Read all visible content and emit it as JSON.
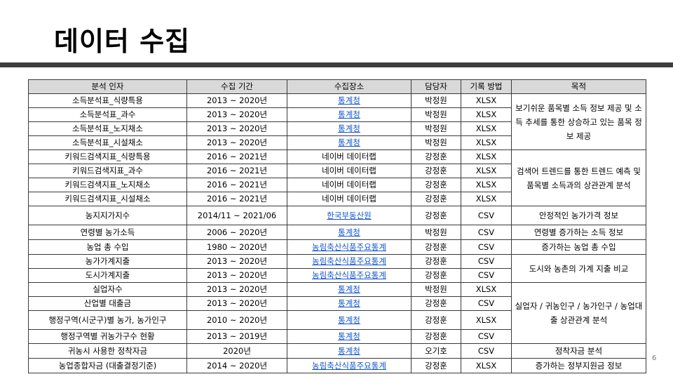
{
  "title": "데이터 수집",
  "page_number": "6",
  "columns": [
    "분석 인자",
    "수집 기간",
    "수집장소",
    "담당자",
    "기록 방법",
    "목적"
  ],
  "rows": [
    {
      "factor": "소득분석표_식량특용",
      "period": "2013 ~ 2020년",
      "source": "통계청",
      "source_link": true,
      "owner": "박정원",
      "format": "XLSX"
    },
    {
      "factor": "소득분석표_과수",
      "period": "2013 ~ 2020년",
      "source": "통계청",
      "source_link": true,
      "owner": "박정원",
      "format": "XLSX"
    },
    {
      "factor": "소득분석표_노지채소",
      "period": "2013 ~ 2020년",
      "source": "통계청",
      "source_link": true,
      "owner": "박정원",
      "format": "XLSX"
    },
    {
      "factor": "소득분석표_시설채소",
      "period": "2013 ~ 2020년",
      "source": "통계청",
      "source_link": true,
      "owner": "박정원",
      "format": "XLSX"
    },
    {
      "factor": "키워드검색지표_식량특용",
      "period": "2016 ~ 2021년",
      "source": "네이버 데이터랩",
      "source_link": false,
      "owner": "강정훈",
      "format": "XLSX"
    },
    {
      "factor": "키워드검색지표_과수",
      "period": "2016 ~ 2021년",
      "source": "네이버 데이터랩",
      "source_link": false,
      "owner": "강정훈",
      "format": "XLSX"
    },
    {
      "factor": "키워드검색지표_노지채소",
      "period": "2016 ~ 2021년",
      "source": "네이버 데이터랩",
      "source_link": false,
      "owner": "강정훈",
      "format": "XLSX"
    },
    {
      "factor": "키워드검색지표_시설채소",
      "period": "2016 ~ 2021년",
      "source": "네이버 데이터랩",
      "source_link": false,
      "owner": "강정훈",
      "format": "XLSX"
    },
    {
      "factor": "농지지가지수",
      "period": "2014/11 ~ 2021/06",
      "source": "한국부동산원",
      "source_link": true,
      "owner": "강정훈",
      "format": "CSV"
    },
    {
      "factor": "연령별 농가소득",
      "period": "2006 ~ 2020년",
      "source": "통계청",
      "source_link": true,
      "owner": "박정원",
      "format": "CSV"
    },
    {
      "factor": "농업 총 수입",
      "period": "1980 ~ 2020년",
      "source": "농림축산식품주요통계",
      "source_link": true,
      "owner": "강정훈",
      "format": "CSV"
    },
    {
      "factor": "농가가계지출",
      "period": "2013 ~ 2020년",
      "source": "농림축산식품주요통계",
      "source_link": true,
      "owner": "강정훈",
      "format": "CSV"
    },
    {
      "factor": "도시가계지출",
      "period": "2013 ~ 2020년",
      "source": "농림축산식품주요통계",
      "source_link": true,
      "owner": "강정훈",
      "format": "CSV"
    },
    {
      "factor": "실업자수",
      "period": "2013 ~ 2020년",
      "source": "통계청",
      "source_link": true,
      "owner": "박정원",
      "format": "XLSX"
    },
    {
      "factor": "산업별 대출금",
      "period": "2013 ~ 2020년",
      "source": "통계청",
      "source_link": true,
      "owner": "강정훈",
      "format": "CSV"
    },
    {
      "factor": "행정구역(시군구)별 농가, 농가인구",
      "period": "2010 ~ 2020년",
      "source": "통계청",
      "source_link": true,
      "owner": "강정훈",
      "format": "XLSX"
    },
    {
      "factor": "행정구역별 귀농가구수 현황",
      "period": "2013 ~ 2019년",
      "source": "통계청",
      "source_link": true,
      "owner": "강정훈",
      "format": "CSV"
    },
    {
      "factor": "귀농시 사용한 정착자금",
      "period": "2020년",
      "source": "통계청",
      "source_link": true,
      "owner": "오기호",
      "format": "CSV"
    },
    {
      "factor": "농업종합자금 (대출결정기준)",
      "period": "2014 ~ 2020년",
      "source": "농림축산식품주요통계",
      "source_link": true,
      "owner": "강정훈",
      "format": "XLSX"
    }
  ],
  "purposes": [
    "보기쉬운 품목별 소득 정보 제공 및 소득 추세를 통한 상승하고 있는 품목 정보 제공",
    "검색어 트렌드를 통한 트렌드 예측 및 품목별 소득과의 상관관계 분석",
    "안정적인 농가가격 정보",
    "연령별 증가하는 소득 정보",
    "증가하는 농업 총 수입",
    "도시와 농촌의 가계 지출 비교",
    "실업자 / 귀농인구 / 농가인구 / 농업대출 상관관계 분석",
    "정착자금 분석",
    "증가하는 정부지원금 정보"
  ]
}
